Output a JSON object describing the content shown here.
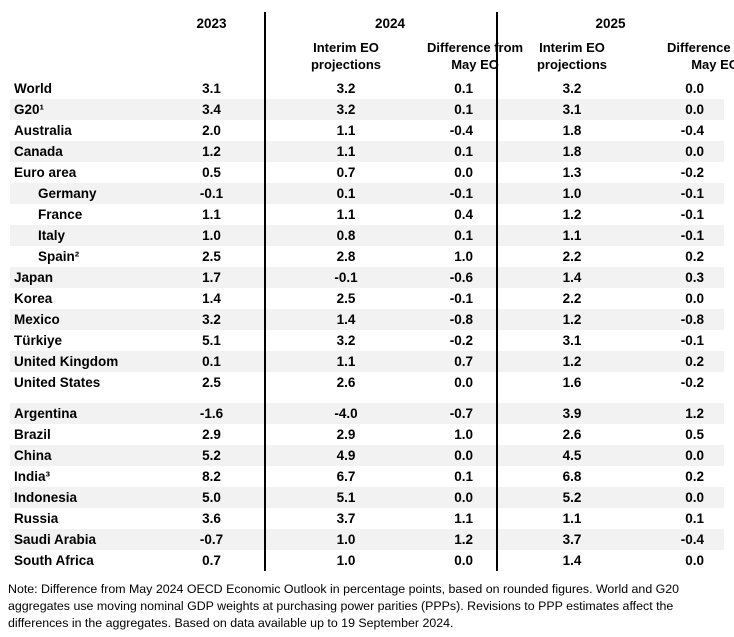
{
  "header": {
    "year_2023": "2023",
    "year_2024": "2024",
    "year_2025": "2025",
    "interim_line1": "Interim EO",
    "interim_line2": "projections",
    "diff_line1": "Difference from",
    "diff_line2": "May EO"
  },
  "table": {
    "column_keys": [
      "2023",
      "2024_interim_eo",
      "2024_diff_from_may_eo",
      "2025_interim_eo",
      "2025_diff_from_may_eo"
    ],
    "blocks": [
      {
        "first_row_striped": false,
        "rows": [
          {
            "label": "World",
            "indent": false,
            "values": [
              "3.1",
              "3.2",
              "0.1",
              "3.2",
              "0.0"
            ]
          },
          {
            "label": "G20¹",
            "indent": false,
            "values": [
              "3.4",
              "3.2",
              "0.1",
              "3.1",
              "0.0"
            ]
          },
          {
            "label": "Australia",
            "indent": false,
            "values": [
              "2.0",
              "1.1",
              "-0.4",
              "1.8",
              "-0.4"
            ]
          },
          {
            "label": "Canada",
            "indent": false,
            "values": [
              "1.2",
              "1.1",
              "0.1",
              "1.8",
              "0.0"
            ]
          },
          {
            "label": "Euro area",
            "indent": false,
            "values": [
              "0.5",
              "0.7",
              "0.0",
              "1.3",
              "-0.2"
            ]
          },
          {
            "label": "Germany",
            "indent": true,
            "values": [
              "-0.1",
              "0.1",
              "-0.1",
              "1.0",
              "-0.1"
            ]
          },
          {
            "label": "France",
            "indent": true,
            "values": [
              "1.1",
              "1.1",
              "0.4",
              "1.2",
              "-0.1"
            ]
          },
          {
            "label": "Italy",
            "indent": true,
            "values": [
              "1.0",
              "0.8",
              "0.1",
              "1.1",
              "-0.1"
            ]
          },
          {
            "label": "Spain²",
            "indent": true,
            "values": [
              "2.5",
              "2.8",
              "1.0",
              "2.2",
              "0.2"
            ]
          },
          {
            "label": "Japan",
            "indent": false,
            "values": [
              "1.7",
              "-0.1",
              "-0.6",
              "1.4",
              "0.3"
            ]
          },
          {
            "label": "Korea",
            "indent": false,
            "values": [
              "1.4",
              "2.5",
              "-0.1",
              "2.2",
              "0.0"
            ]
          },
          {
            "label": "Mexico",
            "indent": false,
            "values": [
              "3.2",
              "1.4",
              "-0.8",
              "1.2",
              "-0.8"
            ]
          },
          {
            "label": "Türkiye",
            "indent": false,
            "values": [
              "5.1",
              "3.2",
              "-0.2",
              "3.1",
              "-0.1"
            ]
          },
          {
            "label": "United Kingdom",
            "indent": false,
            "values": [
              "0.1",
              "1.1",
              "0.7",
              "1.2",
              "0.2"
            ]
          },
          {
            "label": "United States",
            "indent": false,
            "values": [
              "2.5",
              "2.6",
              "0.0",
              "1.6",
              "-0.2"
            ]
          }
        ]
      },
      {
        "first_row_striped": true,
        "rows": [
          {
            "label": "Argentina",
            "indent": false,
            "values": [
              "-1.6",
              "-4.0",
              "-0.7",
              "3.9",
              "1.2"
            ]
          },
          {
            "label": "Brazil",
            "indent": false,
            "values": [
              "2.9",
              "2.9",
              "1.0",
              "2.6",
              "0.5"
            ]
          },
          {
            "label": "China",
            "indent": false,
            "values": [
              "5.2",
              "4.9",
              "0.0",
              "4.5",
              "0.0"
            ]
          },
          {
            "label": "India³",
            "indent": false,
            "values": [
              "8.2",
              "6.7",
              "0.1",
              "6.8",
              "0.2"
            ]
          },
          {
            "label": "Indonesia",
            "indent": false,
            "values": [
              "5.0",
              "5.1",
              "0.0",
              "5.2",
              "0.0"
            ]
          },
          {
            "label": "Russia",
            "indent": false,
            "values": [
              "3.6",
              "3.7",
              "1.1",
              "1.1",
              "0.1"
            ]
          },
          {
            "label": "Saudi Arabia",
            "indent": false,
            "values": [
              "-0.7",
              "1.0",
              "1.2",
              "3.7",
              "-0.4"
            ]
          },
          {
            "label": "South Africa",
            "indent": false,
            "values": [
              "0.7",
              "1.0",
              "0.0",
              "1.4",
              "0.0"
            ]
          }
        ]
      }
    ]
  },
  "note": "Note: Difference from May 2024 OECD Economic Outlook in percentage points, based on rounded figures. World and G20 aggregates use moving nominal GDP weights at purchasing power parities (PPPs). Revisions to PPP estimates affect the differences in the aggregates. Based on data available up to 19 September 2024.",
  "colors": {
    "stripe": "#f2f2f2",
    "divider": "#000000",
    "text": "#000000"
  }
}
